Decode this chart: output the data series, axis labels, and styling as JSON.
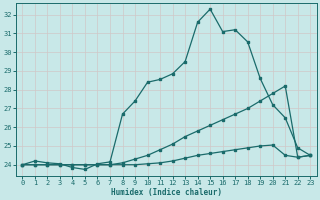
{
  "xlabel": "Humidex (Indice chaleur)",
  "bg_color": "#c8e8e8",
  "grid_color": "#c0dede",
  "line_color": "#1a6b6b",
  "xlim": [
    -0.5,
    23.5
  ],
  "ylim": [
    23.4,
    32.6
  ],
  "xticks": [
    0,
    1,
    2,
    3,
    4,
    5,
    6,
    7,
    8,
    9,
    10,
    11,
    12,
    13,
    14,
    15,
    16,
    17,
    18,
    19,
    20,
    21,
    22,
    23
  ],
  "yticks": [
    24,
    25,
    26,
    27,
    28,
    29,
    30,
    31,
    32
  ],
  "line1_x": [
    0,
    1,
    2,
    3,
    4,
    5,
    6,
    7,
    8,
    9,
    10,
    11,
    12,
    13,
    14,
    15,
    16,
    17,
    18,
    19,
    20,
    21,
    22,
    23
  ],
  "line1_y": [
    24.0,
    24.2,
    24.1,
    24.05,
    23.85,
    23.75,
    24.05,
    24.15,
    26.7,
    27.4,
    28.4,
    28.55,
    28.85,
    29.5,
    31.6,
    32.3,
    31.1,
    31.2,
    30.55,
    28.6,
    27.2,
    26.5,
    24.9,
    24.5
  ],
  "line2_x": [
    0,
    1,
    2,
    3,
    4,
    5,
    6,
    7,
    8,
    9,
    10,
    11,
    12,
    13,
    14,
    15,
    16,
    17,
    18,
    19,
    20,
    21,
    22,
    23
  ],
  "line2_y": [
    24.0,
    24.0,
    24.0,
    24.0,
    24.0,
    24.0,
    24.0,
    24.0,
    24.1,
    24.3,
    24.5,
    24.8,
    25.1,
    25.5,
    25.8,
    26.1,
    26.4,
    26.7,
    27.0,
    27.4,
    27.8,
    28.2,
    24.4,
    24.5
  ],
  "line3_x": [
    0,
    1,
    2,
    3,
    4,
    5,
    6,
    7,
    8,
    9,
    10,
    11,
    12,
    13,
    14,
    15,
    16,
    17,
    18,
    19,
    20,
    21,
    22,
    23
  ],
  "line3_y": [
    24.0,
    24.0,
    24.0,
    24.0,
    24.0,
    24.0,
    24.0,
    24.0,
    24.0,
    24.0,
    24.05,
    24.1,
    24.2,
    24.35,
    24.5,
    24.6,
    24.7,
    24.8,
    24.9,
    25.0,
    25.05,
    24.5,
    24.4,
    24.5
  ]
}
